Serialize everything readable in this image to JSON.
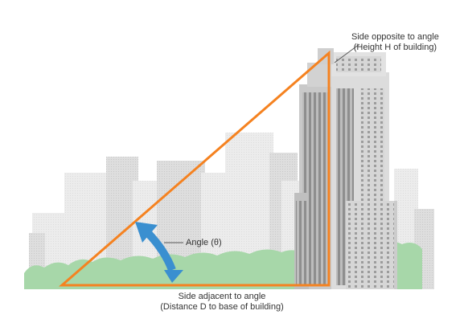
{
  "labels": {
    "opposite_line1": "Side opposite to angle",
    "opposite_line2": "(Height H of building)",
    "angle": "Angle (θ)",
    "adjacent_line1": "Side adjacent to angle",
    "adjacent_line2": "(Distance D to base of building)"
  },
  "colors": {
    "triangle": "#f58220",
    "arrow": "#3a8fd0",
    "grass": "#a7d7a9",
    "building_light": "#e5e5e5",
    "building_mid": "#cfcfcf",
    "building_dark": "#9a9a9a"
  }
}
